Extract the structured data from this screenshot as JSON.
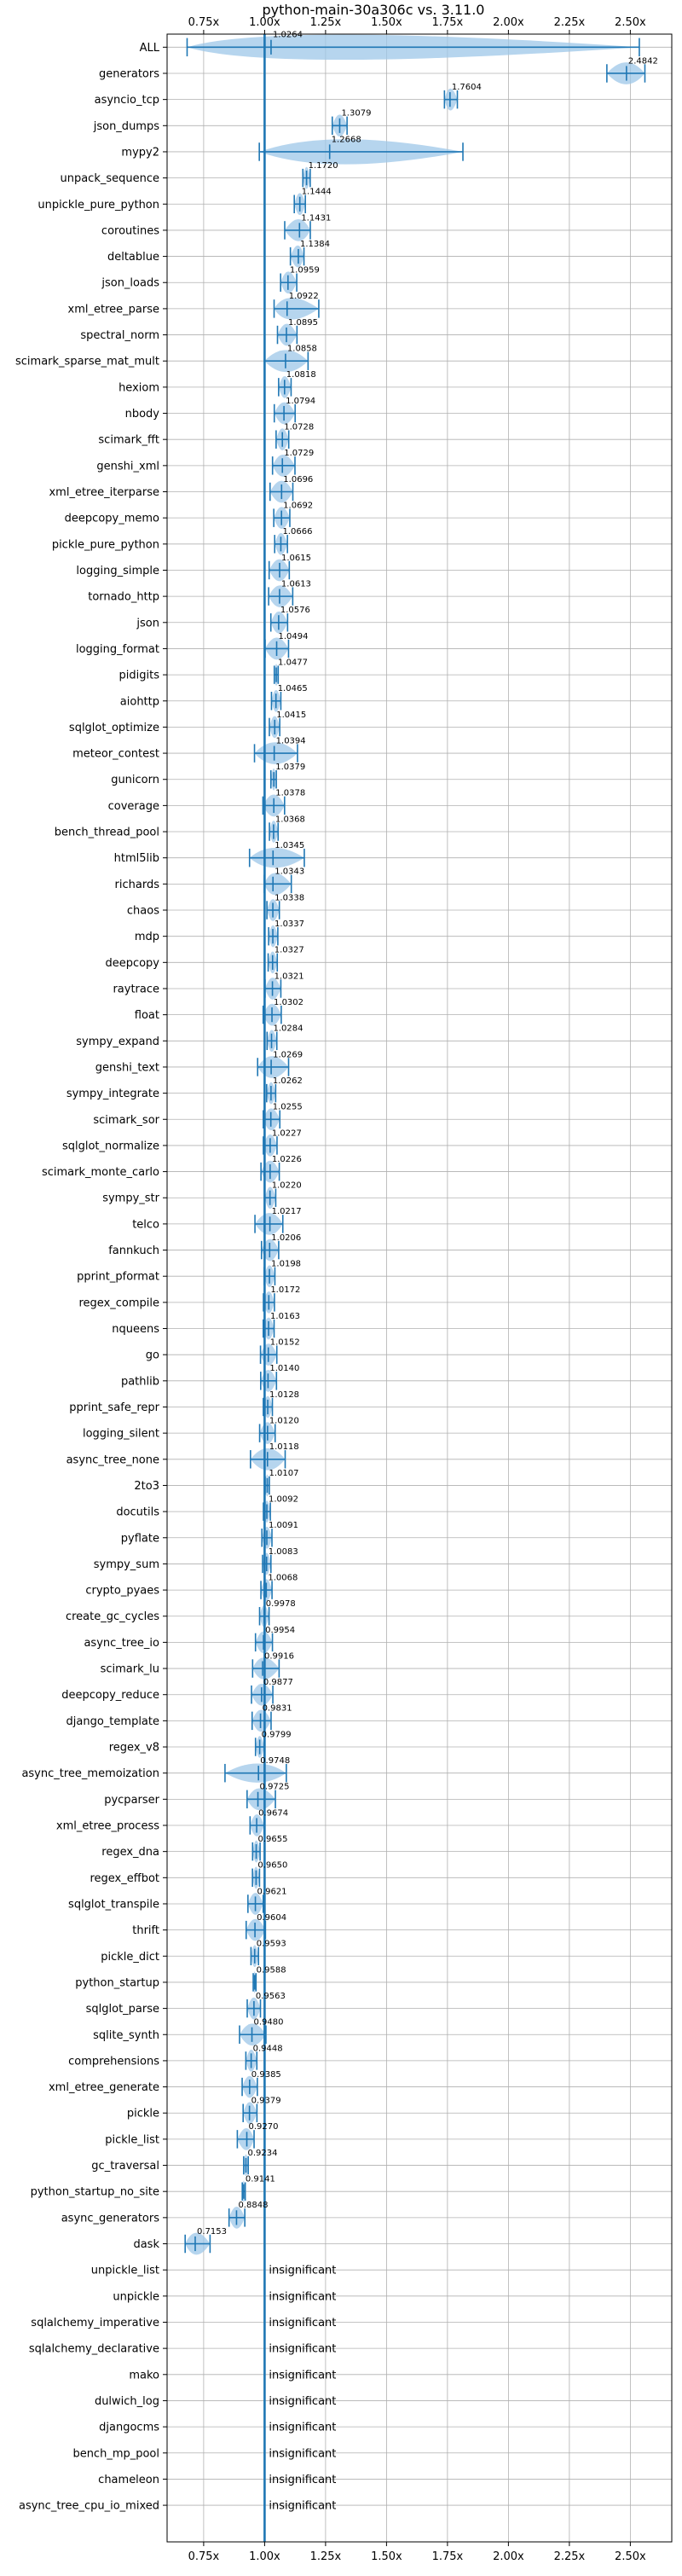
{
  "chart_data": {
    "type": "violin",
    "title": "python-main-30a306c vs. 3.11.0",
    "xlabel": "",
    "ylabel": "",
    "xlim": [
      0.6,
      2.67
    ],
    "x_ticks": [
      0.75,
      1.0,
      1.25,
      1.5,
      1.75,
      2.0,
      2.25,
      2.5
    ],
    "x_tick_labels": [
      "0.75x",
      "1.00x",
      "1.25x",
      "1.50x",
      "1.75x",
      "2.00x",
      "2.25x",
      "2.50x"
    ],
    "reference_line": 1.0,
    "grid": true,
    "colors": {
      "series": "#1f77b4",
      "violin_fill": "#9ec7e8",
      "grid": "#b0b0b0",
      "axis": "#000000"
    },
    "benchmarks": [
      {
        "name": "ALL",
        "value": 1.0264,
        "label": "1.0264",
        "min": 0.6821,
        "max": 2.5369
      },
      {
        "name": "generators",
        "value": 2.4842,
        "label": "2.4842",
        "min": 2.4038,
        "max": 2.5598
      },
      {
        "name": "asyncio_tcp",
        "value": 1.7604,
        "label": "1.7604",
        "min": 1.7376,
        "max": 1.7906
      },
      {
        "name": "json_dumps",
        "value": 1.3079,
        "label": "1.3079",
        "min": 1.2775,
        "max": 1.3382
      },
      {
        "name": "mypy2",
        "value": 1.2668,
        "label": "1.2668",
        "min": 0.9782,
        "max": 1.8134
      },
      {
        "name": "unpack_sequence",
        "value": 1.172,
        "label": "1.1720",
        "min": 1.1569,
        "max": 1.187
      },
      {
        "name": "unpickle_pure_python",
        "value": 1.1444,
        "label": "1.1444",
        "min": 1.1217,
        "max": 1.1671
      },
      {
        "name": "coroutines",
        "value": 1.1431,
        "label": "1.1431",
        "min": 1.0825,
        "max": 1.1874
      },
      {
        "name": "deltablue",
        "value": 1.1384,
        "label": "1.1384",
        "min": 1.1058,
        "max": 1.1614
      },
      {
        "name": "json_loads",
        "value": 1.0959,
        "label": "1.0959",
        "min": 1.0656,
        "max": 1.1318
      },
      {
        "name": "xml_etree_parse",
        "value": 1.0922,
        "label": "1.0922",
        "min": 1.0389,
        "max": 1.2222
      },
      {
        "name": "spectral_norm",
        "value": 1.0895,
        "label": "1.0895",
        "min": 1.0528,
        "max": 1.1327
      },
      {
        "name": "scimark_sparse_mat_mult",
        "value": 1.0858,
        "label": "1.0858",
        "min": 0.9993,
        "max": 1.1782
      },
      {
        "name": "hexiom",
        "value": 1.0818,
        "label": "1.0818",
        "min": 1.0575,
        "max": 1.1086
      },
      {
        "name": "nbody",
        "value": 1.0794,
        "label": "1.0794",
        "min": 1.0397,
        "max": 1.1252
      },
      {
        "name": "scimark_fft",
        "value": 1.0728,
        "label": "1.0728",
        "min": 1.0471,
        "max": 1.0989
      },
      {
        "name": "genshi_xml",
        "value": 1.0729,
        "label": "1.0729",
        "min": 1.0325,
        "max": 1.1245
      },
      {
        "name": "xml_etree_iterparse",
        "value": 1.0696,
        "label": "1.0696",
        "min": 1.0223,
        "max": 1.1158
      },
      {
        "name": "deepcopy_memo",
        "value": 1.0692,
        "label": "1.0692",
        "min": 1.0376,
        "max": 1.1034
      },
      {
        "name": "pickle_pure_python",
        "value": 1.0666,
        "label": "1.0666",
        "min": 1.0413,
        "max": 1.0936
      },
      {
        "name": "logging_simple",
        "value": 1.0615,
        "label": "1.0615",
        "min": 1.0186,
        "max": 1.1012
      },
      {
        "name": "tornado_http",
        "value": 1.0613,
        "label": "1.0613",
        "min": 1.0165,
        "max": 1.1153
      },
      {
        "name": "json",
        "value": 1.0576,
        "label": "1.0576",
        "min": 1.0256,
        "max": 1.0942
      },
      {
        "name": "logging_format",
        "value": 1.0494,
        "label": "1.0494",
        "min": 1.0021,
        "max": 1.0981
      },
      {
        "name": "pidigits",
        "value": 1.0477,
        "label": "1.0477",
        "min": 1.0397,
        "max": 1.0557
      },
      {
        "name": "aiohttp",
        "value": 1.0465,
        "label": "1.0465",
        "min": 1.0282,
        "max": 1.0666
      },
      {
        "name": "sqlglot_optimize",
        "value": 1.0415,
        "label": "1.0415",
        "min": 1.0195,
        "max": 1.0621
      },
      {
        "name": "meteor_contest",
        "value": 1.0394,
        "label": "1.0394",
        "min": 0.9585,
        "max": 1.1349
      },
      {
        "name": "gunicorn",
        "value": 1.0379,
        "label": "1.0379",
        "min": 1.0257,
        "max": 1.0479
      },
      {
        "name": "coverage",
        "value": 1.0378,
        "label": "1.0378",
        "min": 0.9931,
        "max": 1.0819
      },
      {
        "name": "bench_thread_pool",
        "value": 1.0368,
        "label": "1.0368",
        "min": 1.0198,
        "max": 1.0554
      },
      {
        "name": "html5lib",
        "value": 1.0345,
        "label": "1.0345",
        "min": 0.9382,
        "max": 1.1628
      },
      {
        "name": "richards",
        "value": 1.0343,
        "label": "1.0343",
        "min": 0.9982,
        "max": 1.1095
      },
      {
        "name": "chaos",
        "value": 1.0338,
        "label": "1.0338",
        "min": 1.0095,
        "max": 1.0604
      },
      {
        "name": "mdp",
        "value": 1.0337,
        "label": "1.0337",
        "min": 1.0165,
        "max": 1.0542
      },
      {
        "name": "deepcopy",
        "value": 1.0327,
        "label": "1.0327",
        "min": 1.0146,
        "max": 1.0519
      },
      {
        "name": "raytrace",
        "value": 1.0321,
        "label": "1.0321",
        "min": 1.0019,
        "max": 1.0666
      },
      {
        "name": "float",
        "value": 1.0302,
        "label": "1.0302",
        "min": 0.9941,
        "max": 1.0682
      },
      {
        "name": "sympy_expand",
        "value": 1.0284,
        "label": "1.0284",
        "min": 1.0102,
        "max": 1.0501
      },
      {
        "name": "genshi_text",
        "value": 1.0269,
        "label": "1.0269",
        "min": 0.9714,
        "max": 1.0983
      },
      {
        "name": "sympy_integrate",
        "value": 1.0262,
        "label": "1.0262",
        "min": 1.0085,
        "max": 1.0453
      },
      {
        "name": "scimark_sor",
        "value": 1.0255,
        "label": "1.0255",
        "min": 0.9946,
        "max": 1.0624
      },
      {
        "name": "sqlglot_normalize",
        "value": 1.0227,
        "label": "1.0227",
        "min": 0.9948,
        "max": 1.0509
      },
      {
        "name": "scimark_monte_carlo",
        "value": 1.0226,
        "label": "1.0226",
        "min": 0.9851,
        "max": 1.0601
      },
      {
        "name": "sympy_str",
        "value": 1.022,
        "label": "1.0220",
        "min": 1.0009,
        "max": 1.0456
      },
      {
        "name": "telco",
        "value": 1.0217,
        "label": "1.0217",
        "min": 0.9604,
        "max": 1.0747
      },
      {
        "name": "fannkuch",
        "value": 1.0206,
        "label": "1.0206",
        "min": 0.9873,
        "max": 1.0577
      },
      {
        "name": "pprint_pformat",
        "value": 1.0198,
        "label": "1.0198",
        "min": 0.9982,
        "max": 1.0422
      },
      {
        "name": "regex_compile",
        "value": 1.0172,
        "label": "1.0172",
        "min": 0.9952,
        "max": 1.0403
      },
      {
        "name": "nqueens",
        "value": 1.0163,
        "label": "1.0163",
        "min": 0.9944,
        "max": 1.0389
      },
      {
        "name": "go",
        "value": 1.0152,
        "label": "1.0152",
        "min": 0.9831,
        "max": 1.0501
      },
      {
        "name": "pathlib",
        "value": 1.014,
        "label": "1.0140",
        "min": 0.9839,
        "max": 1.0486
      },
      {
        "name": "pprint_safe_repr",
        "value": 1.0128,
        "label": "1.0128",
        "min": 0.9947,
        "max": 1.0319
      },
      {
        "name": "logging_silent",
        "value": 1.012,
        "label": "1.0120",
        "min": 0.9796,
        "max": 1.0432
      },
      {
        "name": "async_tree_none",
        "value": 1.0118,
        "label": "1.0118",
        "min": 0.9421,
        "max": 1.0843
      },
      {
        "name": "2to3",
        "value": 1.0107,
        "label": "1.0107",
        "min": 1.0021,
        "max": 1.0194
      },
      {
        "name": "docutils",
        "value": 1.0092,
        "label": "1.0092",
        "min": 0.9951,
        "max": 1.0235
      },
      {
        "name": "pyflate",
        "value": 1.0091,
        "label": "1.0091",
        "min": 0.9889,
        "max": 1.0301
      },
      {
        "name": "sympy_sum",
        "value": 1.0083,
        "label": "1.0083",
        "min": 0.9915,
        "max": 1.0259
      },
      {
        "name": "crypto_pyaes",
        "value": 1.0068,
        "label": "1.0068",
        "min": 0.9848,
        "max": 1.0304
      },
      {
        "name": "create_gc_cycles",
        "value": 0.9978,
        "label": "0.9978",
        "min": 0.9794,
        "max": 1.0182
      },
      {
        "name": "async_tree_io",
        "value": 0.9954,
        "label": "0.9954",
        "min": 0.9626,
        "max": 1.0321
      },
      {
        "name": "scimark_lu",
        "value": 0.9916,
        "label": "0.9916",
        "min": 0.9508,
        "max": 1.0594
      },
      {
        "name": "deepcopy_reduce",
        "value": 0.9877,
        "label": "0.9877",
        "min": 0.9462,
        "max": 1.0338
      },
      {
        "name": "django_template",
        "value": 0.9831,
        "label": "0.9831",
        "min": 0.9488,
        "max": 1.0265
      },
      {
        "name": "regex_v8",
        "value": 0.9799,
        "label": "0.9799",
        "min": 0.9627,
        "max": 0.9981
      },
      {
        "name": "async_tree_memoization",
        "value": 0.9748,
        "label": "0.9748",
        "min": 0.8375,
        "max": 1.0891
      },
      {
        "name": "pycparser",
        "value": 0.9725,
        "label": "0.9725",
        "min": 0.9281,
        "max": 1.0442
      },
      {
        "name": "xml_etree_process",
        "value": 0.9674,
        "label": "0.9674",
        "min": 0.9403,
        "max": 0.9977
      },
      {
        "name": "regex_dna",
        "value": 0.9655,
        "label": "0.9655",
        "min": 0.9508,
        "max": 0.9814
      },
      {
        "name": "regex_effbot",
        "value": 0.965,
        "label": "0.9650",
        "min": 0.9502,
        "max": 0.9791
      },
      {
        "name": "sqlglot_transpile",
        "value": 0.9621,
        "label": "0.9621",
        "min": 0.9316,
        "max": 0.9943
      },
      {
        "name": "thrift",
        "value": 0.9604,
        "label": "0.9604",
        "min": 0.9244,
        "max": 1.0034
      },
      {
        "name": "pickle_dict",
        "value": 0.9593,
        "label": "0.9593",
        "min": 0.9441,
        "max": 0.9749
      },
      {
        "name": "python_startup",
        "value": 0.9588,
        "label": "0.9588",
        "min": 0.9533,
        "max": 0.9647
      },
      {
        "name": "sqlglot_parse",
        "value": 0.9563,
        "label": "0.9563",
        "min": 0.9287,
        "max": 0.9829
      },
      {
        "name": "sqlite_synth",
        "value": 0.948,
        "label": "0.9480",
        "min": 0.8972,
        "max": 1.0054
      },
      {
        "name": "comprehensions",
        "value": 0.9448,
        "label": "0.9448",
        "min": 0.9231,
        "max": 0.9681
      },
      {
        "name": "xml_etree_generate",
        "value": 0.9385,
        "label": "0.9385",
        "min": 0.9079,
        "max": 0.9702
      },
      {
        "name": "pickle",
        "value": 0.9379,
        "label": "0.9379",
        "min": 0.9119,
        "max": 0.9685
      },
      {
        "name": "pickle_list",
        "value": 0.927,
        "label": "0.9270",
        "min": 0.8881,
        "max": 0.9568
      },
      {
        "name": "gc_traversal",
        "value": 0.9234,
        "label": "0.9234",
        "min": 0.9142,
        "max": 0.9328
      },
      {
        "name": "python_startup_no_site",
        "value": 0.9141,
        "label": "0.9141",
        "min": 0.9084,
        "max": 0.9205
      },
      {
        "name": "async_generators",
        "value": 0.8848,
        "label": "0.8848",
        "min": 0.8541,
        "max": 0.9188
      },
      {
        "name": "dask",
        "value": 0.7153,
        "label": "0.7153",
        "min": 0.6741,
        "max": 0.7762
      },
      {
        "name": "unpickle_list",
        "label": "insignificant"
      },
      {
        "name": "unpickle",
        "label": "insignificant"
      },
      {
        "name": "sqlalchemy_imperative",
        "label": "insignificant"
      },
      {
        "name": "sqlalchemy_declarative",
        "label": "insignificant"
      },
      {
        "name": "mako",
        "label": "insignificant"
      },
      {
        "name": "dulwich_log",
        "label": "insignificant"
      },
      {
        "name": "djangocms",
        "label": "insignificant"
      },
      {
        "name": "bench_mp_pool",
        "label": "insignificant"
      },
      {
        "name": "chameleon",
        "label": "insignificant"
      },
      {
        "name": "async_tree_cpu_io_mixed",
        "label": "insignificant"
      }
    ]
  }
}
